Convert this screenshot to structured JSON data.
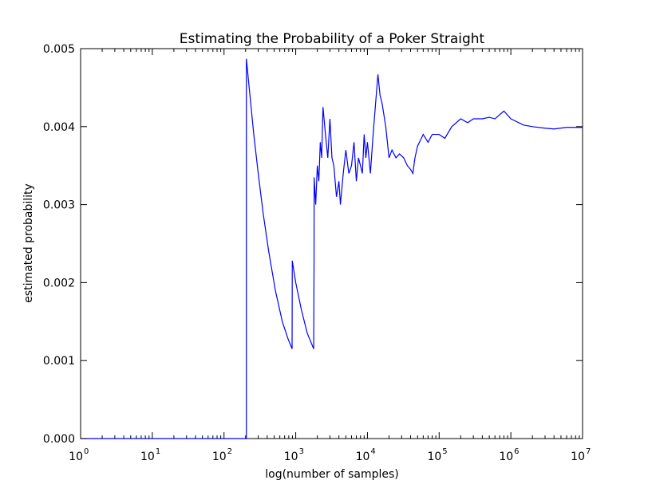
{
  "chart_data": {
    "type": "line",
    "title": "Estimating the Probability of a Poker Straight",
    "xlabel": "log(number of samples)",
    "ylabel": "estimated probability",
    "xscale": "log",
    "xlim": [
      1,
      10000000
    ],
    "ylim": [
      0,
      0.005
    ],
    "grid": false,
    "series_color": "#0000ff",
    "x_ticks": [
      {
        "base": "10",
        "exp": "0",
        "value": 1
      },
      {
        "base": "10",
        "exp": "1",
        "value": 10
      },
      {
        "base": "10",
        "exp": "2",
        "value": 100
      },
      {
        "base": "10",
        "exp": "3",
        "value": 1000
      },
      {
        "base": "10",
        "exp": "4",
        "value": 10000
      },
      {
        "base": "10",
        "exp": "5",
        "value": 100000
      },
      {
        "base": "10",
        "exp": "6",
        "value": 1000000
      },
      {
        "base": "10",
        "exp": "7",
        "value": 10000000
      }
    ],
    "y_ticks": [
      {
        "label": "0.000",
        "value": 0
      },
      {
        "label": "0.001",
        "value": 0.001
      },
      {
        "label": "0.002",
        "value": 0.002
      },
      {
        "label": "0.003",
        "value": 0.003
      },
      {
        "label": "0.004",
        "value": 0.004
      },
      {
        "label": "0.005",
        "value": 0.005
      }
    ],
    "series": [
      {
        "points": [
          [
            1,
            0
          ],
          [
            205,
            0
          ],
          [
            205,
            0.00487
          ],
          [
            230,
            0.0044
          ],
          [
            260,
            0.0039
          ],
          [
            300,
            0.0034
          ],
          [
            350,
            0.0029
          ],
          [
            420,
            0.0024
          ],
          [
            520,
            0.0019
          ],
          [
            650,
            0.0015
          ],
          [
            780,
            0.00128
          ],
          [
            890,
            0.00115
          ],
          [
            895,
            0.00228
          ],
          [
            1000,
            0.002
          ],
          [
            1200,
            0.00165
          ],
          [
            1450,
            0.00135
          ],
          [
            1780,
            0.00115
          ],
          [
            1790,
            0.0017
          ],
          [
            1800,
            0.00225
          ],
          [
            1805,
            0.00335
          ],
          [
            1900,
            0.003
          ],
          [
            2000,
            0.0035
          ],
          [
            2100,
            0.0033
          ],
          [
            2200,
            0.0038
          ],
          [
            2300,
            0.0036
          ],
          [
            2400,
            0.00425
          ],
          [
            2600,
            0.0039
          ],
          [
            2800,
            0.0036
          ],
          [
            3000,
            0.0041
          ],
          [
            3200,
            0.0036
          ],
          [
            3400,
            0.0035
          ],
          [
            3700,
            0.0031
          ],
          [
            4000,
            0.0033
          ],
          [
            4200,
            0.003
          ],
          [
            4600,
            0.0034
          ],
          [
            5000,
            0.0037
          ],
          [
            5500,
            0.0034
          ],
          [
            6000,
            0.0035
          ],
          [
            6500,
            0.0038
          ],
          [
            7000,
            0.0033
          ],
          [
            7500,
            0.0036
          ],
          [
            8000,
            0.0035
          ],
          [
            8500,
            0.0034
          ],
          [
            9000,
            0.0039
          ],
          [
            9500,
            0.0036
          ],
          [
            10000,
            0.0038
          ],
          [
            11000,
            0.0034
          ],
          [
            12000,
            0.0039
          ],
          [
            13000,
            0.0043
          ],
          [
            14000,
            0.00467
          ],
          [
            15000,
            0.0044
          ],
          [
            16000,
            0.0043
          ],
          [
            18000,
            0.004
          ],
          [
            20000,
            0.0036
          ],
          [
            22000,
            0.0037
          ],
          [
            25000,
            0.0036
          ],
          [
            28000,
            0.00365
          ],
          [
            32000,
            0.0036
          ],
          [
            36000,
            0.0035
          ],
          [
            40000,
            0.00345
          ],
          [
            43000,
            0.0034
          ],
          [
            46000,
            0.0036
          ],
          [
            50000,
            0.00375
          ],
          [
            60000,
            0.0039
          ],
          [
            70000,
            0.0038
          ],
          [
            80000,
            0.0039
          ],
          [
            100000,
            0.0039
          ],
          [
            120000,
            0.00385
          ],
          [
            150000,
            0.004
          ],
          [
            200000,
            0.0041
          ],
          [
            250000,
            0.00405
          ],
          [
            300000,
            0.0041
          ],
          [
            400000,
            0.0041
          ],
          [
            500000,
            0.00412
          ],
          [
            600000,
            0.0041
          ],
          [
            800000,
            0.0042
          ],
          [
            1000000,
            0.0041
          ],
          [
            1500000,
            0.00402
          ],
          [
            2000000,
            0.004
          ],
          [
            3000000,
            0.00398
          ],
          [
            4000000,
            0.00397
          ],
          [
            6000000,
            0.00399
          ],
          [
            10000000,
            0.00399
          ]
        ]
      }
    ]
  }
}
